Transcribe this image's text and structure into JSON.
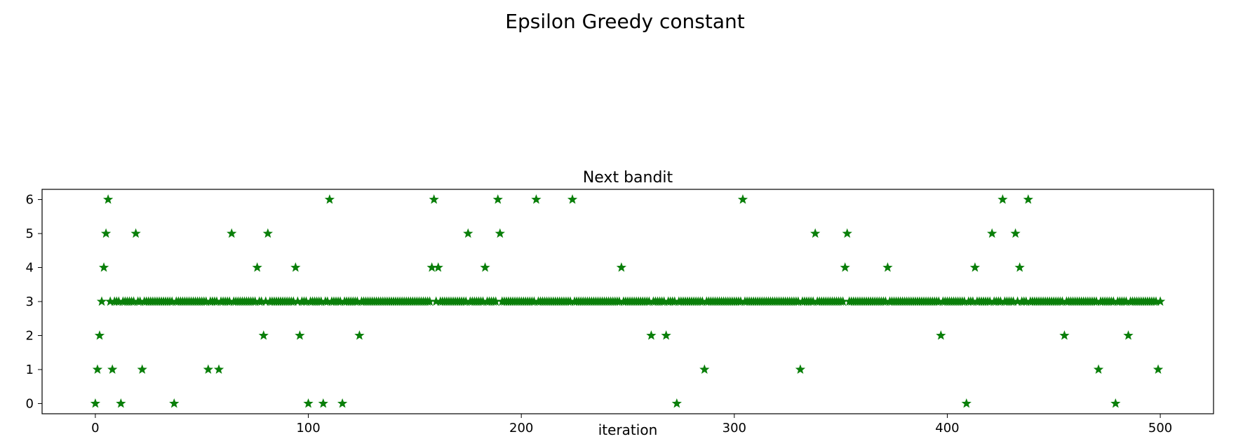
{
  "figure": {
    "suptitle": "Epsilon Greedy constant"
  },
  "chart_data": {
    "type": "scatter",
    "title": "Next bandit",
    "xlabel": "iteration",
    "ylabel": "",
    "marker": "star",
    "color": "#0a7f0a",
    "xlim": [
      -25,
      525
    ],
    "ylim": [
      -0.3,
      6.3
    ],
    "xticks": [
      0,
      100,
      200,
      300,
      400,
      500
    ],
    "yticks": [
      0,
      1,
      2,
      3,
      4,
      5,
      6
    ],
    "grid": false,
    "baseline_value": 3,
    "baseline_x_range": [
      3,
      500
    ],
    "points": [
      [
        0,
        0
      ],
      [
        1,
        1
      ],
      [
        2,
        2
      ],
      [
        4,
        4
      ],
      [
        5,
        5
      ],
      [
        6,
        6
      ],
      [
        8,
        1
      ],
      [
        12,
        0
      ],
      [
        19,
        5
      ],
      [
        22,
        1
      ],
      [
        37,
        0
      ],
      [
        53,
        1
      ],
      [
        58,
        1
      ],
      [
        64,
        5
      ],
      [
        76,
        4
      ],
      [
        79,
        2
      ],
      [
        81,
        5
      ],
      [
        94,
        4
      ],
      [
        96,
        2
      ],
      [
        100,
        0
      ],
      [
        107,
        0
      ],
      [
        110,
        6
      ],
      [
        116,
        0
      ],
      [
        124,
        2
      ],
      [
        159,
        6
      ],
      [
        158,
        4
      ],
      [
        161,
        4
      ],
      [
        175,
        5
      ],
      [
        183,
        4
      ],
      [
        189,
        6
      ],
      [
        190,
        5
      ],
      [
        207,
        6
      ],
      [
        224,
        6
      ],
      [
        247,
        4
      ],
      [
        261,
        2
      ],
      [
        268,
        2
      ],
      [
        273,
        0
      ],
      [
        286,
        1
      ],
      [
        304,
        6
      ],
      [
        331,
        1
      ],
      [
        338,
        5
      ],
      [
        352,
        4
      ],
      [
        353,
        5
      ],
      [
        372,
        4
      ],
      [
        397,
        2
      ],
      [
        409,
        0
      ],
      [
        413,
        4
      ],
      [
        421,
        5
      ],
      [
        426,
        6
      ],
      [
        432,
        5
      ],
      [
        434,
        4
      ],
      [
        438,
        6
      ],
      [
        455,
        2
      ],
      [
        471,
        1
      ],
      [
        479,
        0
      ],
      [
        485,
        2
      ],
      [
        499,
        1
      ]
    ]
  }
}
